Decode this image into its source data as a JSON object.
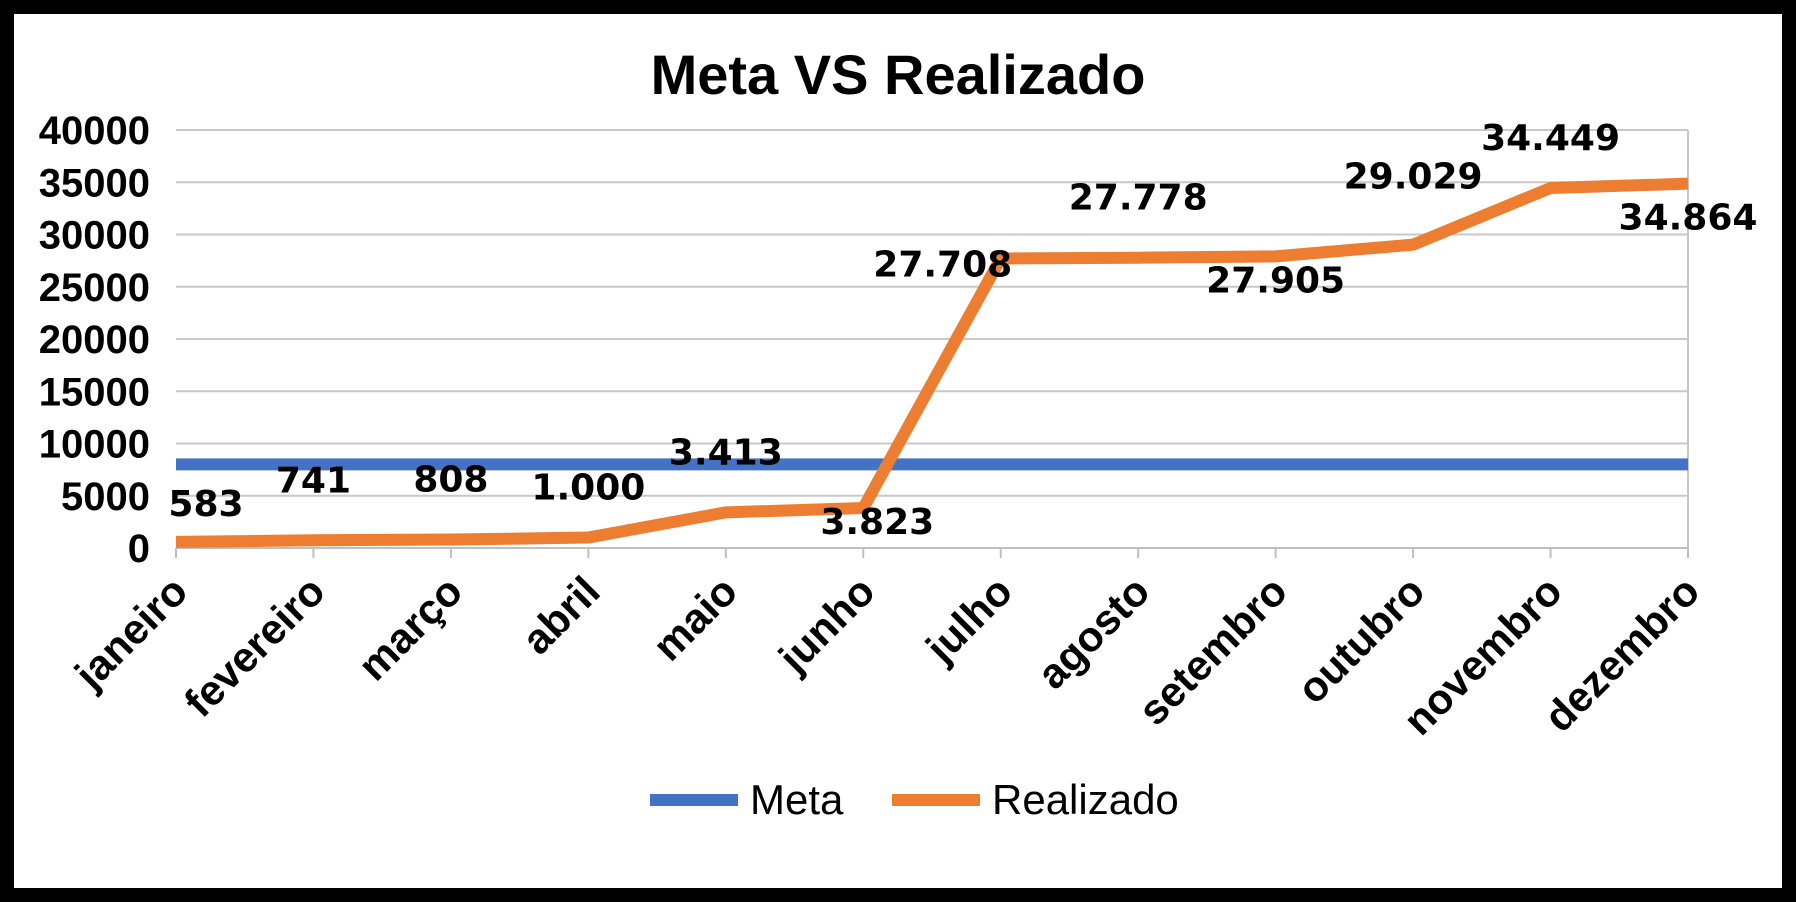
{
  "chart_data": {
    "type": "line",
    "title": "Meta VS Realizado",
    "xlabel": "",
    "ylabel": "",
    "categories": [
      "janeiro",
      "fevereiro",
      "março",
      "abril",
      "maio",
      "junho",
      "julho",
      "agosto",
      "setembro",
      "outubro",
      "novembro",
      "dezembro"
    ],
    "ylim": [
      0,
      40000
    ],
    "yticks": [
      "0",
      "5000",
      "10000",
      "15000",
      "20000",
      "25000",
      "30000",
      "35000",
      "40000"
    ],
    "grid": true,
    "legend_position": "bottom",
    "series": [
      {
        "name": "Meta",
        "color": "#4472C4",
        "values": [
          8000,
          8000,
          8000,
          8000,
          8000,
          8000,
          8000,
          8000,
          8000,
          8000,
          8000,
          8000
        ]
      },
      {
        "name": "Realizado",
        "color": "#ED7D31",
        "values": [
          583,
          741,
          808,
          1000,
          3413,
          3823,
          27708,
          27778,
          27905,
          29029,
          34449,
          34864
        ],
        "data_labels": [
          "583",
          "741",
          "808",
          "1.000",
          "3.413",
          "3.823",
          "27.708",
          "27.778",
          "27.905",
          "29.029",
          "34.449",
          "34.864"
        ]
      }
    ]
  }
}
